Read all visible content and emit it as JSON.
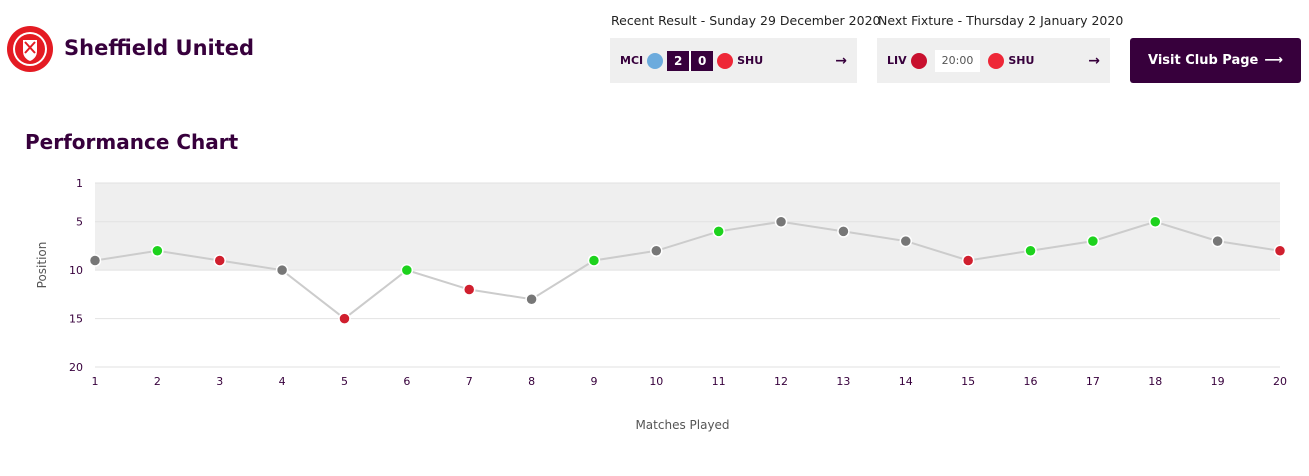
{
  "club": {
    "name": "Sheffield United",
    "logo_icon": "sheffield-united-crest"
  },
  "recent_result": {
    "title": "Recent Result - Sunday 29 December 2020",
    "home": "MCI",
    "home_score": "2",
    "away_score": "0",
    "away": "SHU",
    "home_badge_color": "#6cabdd",
    "away_badge_color": "#ee2737"
  },
  "next_fixture": {
    "title": "Next Fixture - Thursday 2 January 2020",
    "home": "LIV",
    "time": "20:00",
    "away": "SHU"
  },
  "visit_button": {
    "label": "Visit Club Page",
    "icon": "arrow-right-icon"
  },
  "section_title": "Performance Chart",
  "colors": {
    "primary": "#37003c",
    "win": "#1dd21d",
    "draw": "#777777",
    "loss": "#d01f2e"
  },
  "chart_data": {
    "type": "line",
    "title": "",
    "xlabel": "Matches Played",
    "ylabel": "Position",
    "x": [
      1,
      2,
      3,
      4,
      5,
      6,
      7,
      8,
      9,
      10,
      11,
      12,
      13,
      14,
      15,
      16,
      17,
      18,
      19,
      20
    ],
    "y": [
      9,
      8,
      9,
      10,
      15,
      10,
      12,
      13,
      9,
      8,
      6,
      5,
      6,
      7,
      9,
      8,
      7,
      5,
      7,
      8
    ],
    "results": [
      "D",
      "W",
      "L",
      "D",
      "L",
      "W",
      "L",
      "D",
      "W",
      "D",
      "W",
      "D",
      "D",
      "D",
      "L",
      "W",
      "W",
      "W",
      "D",
      "L"
    ],
    "ylim": [
      1,
      20
    ],
    "y_inverted": true,
    "y_ticks": [
      1,
      5,
      10,
      15,
      20
    ],
    "shaded_band": [
      1,
      10
    ],
    "grid": true
  }
}
